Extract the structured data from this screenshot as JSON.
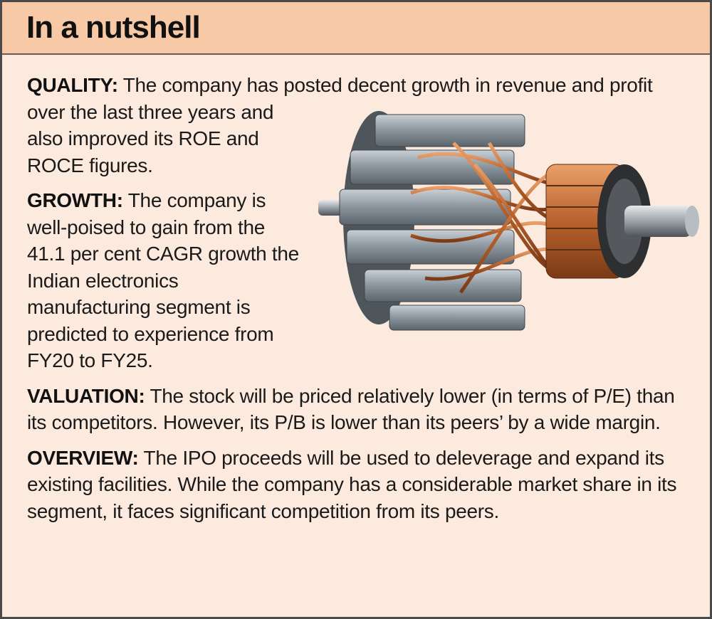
{
  "header": {
    "title": "In a nutshell"
  },
  "sections": [
    {
      "label": "QUALITY:",
      "text": "The company has posted decent growth in revenue and profit over the last three years and also improved its ROE and ROCE figures."
    },
    {
      "label": "GROWTH:",
      "text": "The company is well-poised to gain from the 41.1 per cent CAGR growth the Indian electronics manufacturing segment is predicted to experience from FY20 to FY25."
    },
    {
      "label": "VALUATION:",
      "text": "The stock will be priced relatively lower (in terms of P/E) than its competitors. However, its P/B is lower than its peers’ by a wide margin."
    },
    {
      "label": "OVERVIEW:",
      "text": "The IPO proceeds will be used to deleverage and expand its existing facilities. While the company has a considerable market share in its segment, it faces significant competition from its peers."
    }
  ]
}
